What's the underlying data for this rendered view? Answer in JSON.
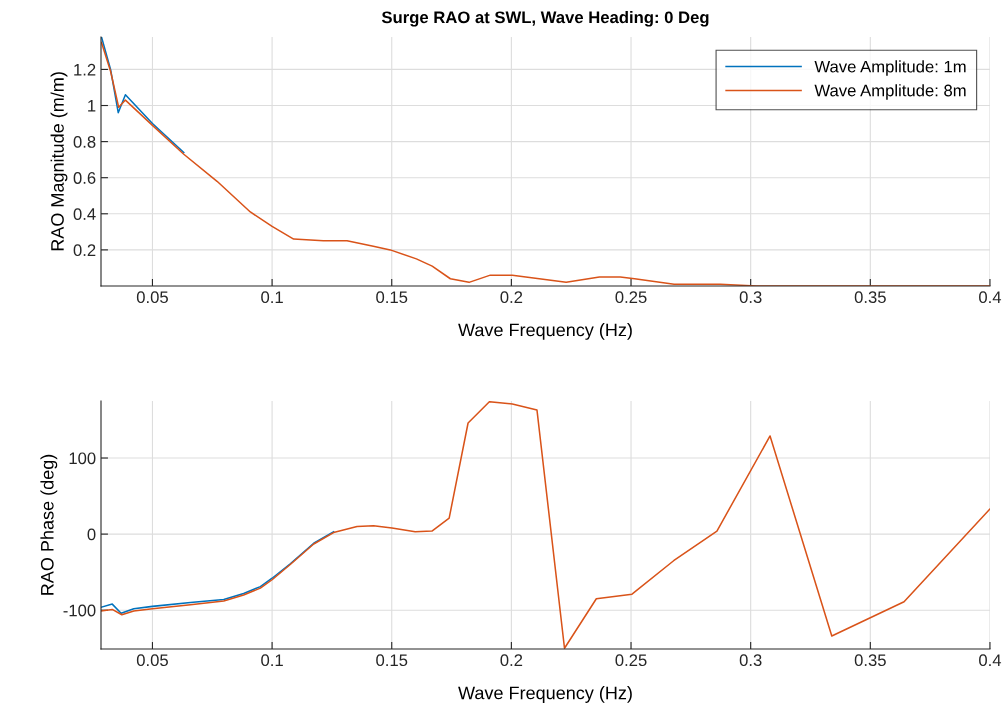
{
  "chart_data": [
    {
      "type": "line",
      "title": "Surge RAO at SWL, Wave Heading: 0 Deg",
      "xlabel": "Wave Frequency (Hz)",
      "ylabel": "RAO Magnitude (m/m)",
      "xlim": [
        0.0285,
        0.4
      ],
      "ylim": [
        0,
        1.38
      ],
      "xticks": [
        0.05,
        0.1,
        0.15,
        0.2,
        0.25,
        0.3,
        0.35,
        0.4
      ],
      "yticks": [
        0.2,
        0.4,
        0.6,
        0.8,
        1,
        1.2
      ],
      "grid": true,
      "legend": "top right",
      "line_style": "solid",
      "marker": "none",
      "series": [
        {
          "name": "Wave Amplitude: 1m",
          "color": "#0072bd",
          "x": [
            0.0287,
            0.0325,
            0.0357,
            0.0387,
            0.05,
            0.0631
          ],
          "values": [
            1.38,
            1.2,
            0.96,
            1.06,
            0.9,
            0.74
          ]
        },
        {
          "name": "Wave Amplitude: 8m",
          "color": "#d95319",
          "x": [
            0.0287,
            0.0325,
            0.0359,
            0.0387,
            0.05,
            0.0631,
            0.077,
            0.0909,
            0.1,
            0.109,
            0.1214,
            0.1313,
            0.1423,
            0.1494,
            0.1603,
            0.1669,
            0.1745,
            0.1823,
            0.1912,
            0.2004,
            0.2229,
            0.2368,
            0.2455,
            0.2515,
            0.268,
            0.2873,
            0.3023,
            0.329,
            0.4
          ],
          "values": [
            1.35,
            1.19,
            0.99,
            1.03,
            0.89,
            0.73,
            0.58,
            0.41,
            0.33,
            0.26,
            0.25,
            0.25,
            0.22,
            0.2,
            0.15,
            0.11,
            0.04,
            0.02,
            0.06,
            0.06,
            0.02,
            0.05,
            0.05,
            0.04,
            0.01,
            0.01,
            0,
            0,
            0
          ]
        }
      ]
    },
    {
      "type": "line",
      "xlabel": "Wave Frequency (Hz)",
      "ylabel": "RAO Phase (deg)",
      "xlim": [
        0.0285,
        0.4
      ],
      "ylim": [
        -151,
        175
      ],
      "xticks": [
        0.05,
        0.1,
        0.15,
        0.2,
        0.25,
        0.3,
        0.35,
        0.4
      ],
      "yticks": [
        -100,
        0,
        100
      ],
      "grid": true,
      "legend": false,
      "line_style": "solid",
      "marker": "none",
      "series": [
        {
          "color": "#0072bd",
          "x": [
            0.0287,
            0.0332,
            0.0369,
            0.0422,
            0.05,
            0.0659,
            0.0798,
            0.0881,
            0.0951,
            0.1,
            0.1076,
            0.1174,
            0.1257
          ],
          "values": [
            -96,
            -92,
            -104,
            -98,
            -95,
            -90,
            -86,
            -78,
            -69,
            -58,
            -39,
            -12,
            3
          ]
        },
        {
          "color": "#d95319",
          "x": [
            0.0287,
            0.0332,
            0.0372,
            0.0422,
            0.05,
            0.0659,
            0.0798,
            0.0881,
            0.0951,
            0.1,
            0.1076,
            0.1174,
            0.1257,
            0.1355,
            0.1424,
            0.1501,
            0.1598,
            0.1668,
            0.174,
            0.1819,
            0.1908,
            0.2004,
            0.2107,
            0.2222,
            0.2355,
            0.2504,
            0.2678,
            0.2859,
            0.3081,
            0.3339,
            0.3641,
            0.4
          ],
          "values": [
            -101,
            -99,
            -106,
            -101,
            -98,
            -93,
            -88,
            -80,
            -71,
            -60,
            -40,
            -13,
            2,
            10,
            11,
            8,
            3,
            4,
            21,
            146,
            174,
            171,
            163,
            -150,
            -85,
            -79,
            -35,
            4,
            129,
            -134,
            -89,
            33
          ]
        }
      ]
    }
  ]
}
